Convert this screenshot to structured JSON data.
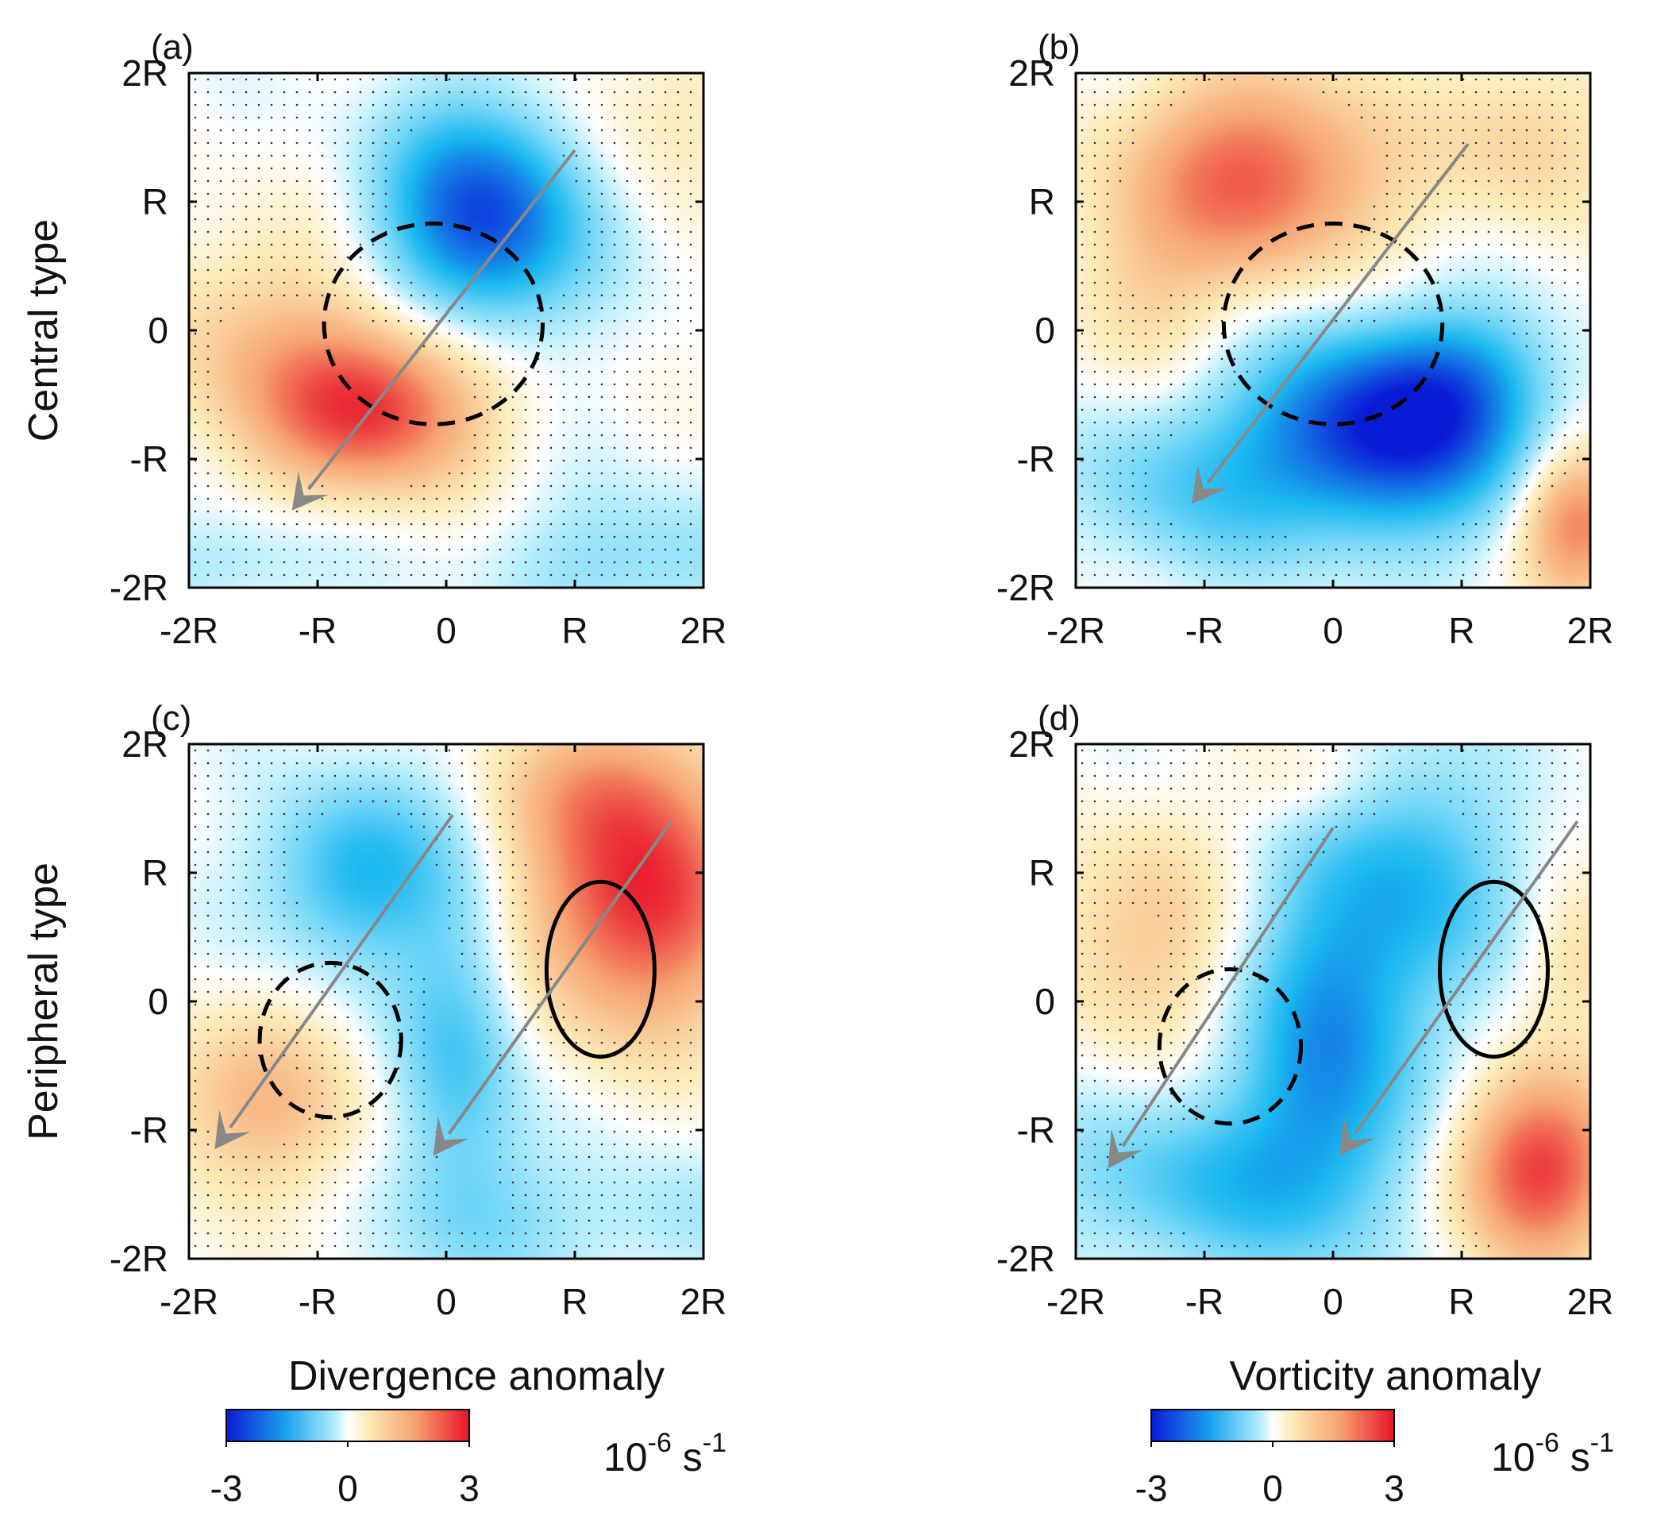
{
  "chart_data": [
    {
      "type": "heatmap",
      "panel_label": "(a)",
      "row_label": "Central type",
      "field": "Divergence anomaly",
      "xticks": [
        "-2R",
        "-R",
        "0",
        "R",
        "2R"
      ],
      "yticks": [
        "2R",
        "R",
        "0",
        "-R",
        "-2R"
      ],
      "xlim": [
        -2,
        2
      ],
      "ylim": [
        -2,
        2
      ],
      "clim": [
        -3,
        3
      ],
      "blobs": [
        {
          "x": 0.3,
          "y": 0.9,
          "sx": 0.55,
          "sy": 0.6,
          "amp": -2.6
        },
        {
          "x": -0.6,
          "y": -0.6,
          "sx": 0.6,
          "sy": 0.45,
          "amp": 2.6
        },
        {
          "x": -1.5,
          "y": 0.0,
          "sx": 0.7,
          "sy": 0.6,
          "amp": 0.8
        },
        {
          "x": 1.6,
          "y": 1.7,
          "sx": 0.6,
          "sy": 0.5,
          "amp": 0.5
        },
        {
          "x": 1.5,
          "y": -1.8,
          "sx": 0.8,
          "sy": 0.4,
          "amp": -0.7
        },
        {
          "x": -1.6,
          "y": -1.8,
          "sx": 0.6,
          "sy": 0.3,
          "amp": -0.5
        }
      ],
      "dashed_contour": {
        "cx": -0.1,
        "cy": 0.05,
        "rx": 0.85,
        "ry": 0.78
      },
      "solid_contour": null,
      "arrows": [
        {
          "from": [
            1.0,
            1.4
          ],
          "to": [
            -1.2,
            -1.4
          ]
        }
      ]
    },
    {
      "type": "heatmap",
      "panel_label": "(b)",
      "row_label": "",
      "field": "Vorticity anomaly",
      "xticks": [
        "-2R",
        "-R",
        "0",
        "R",
        "2R"
      ],
      "yticks": [
        "2R",
        "R",
        "0",
        "-R",
        "-2R"
      ],
      "xlim": [
        -2,
        2
      ],
      "ylim": [
        -2,
        2
      ],
      "clim": [
        -3,
        3
      ],
      "blobs": [
        {
          "x": -0.6,
          "y": 1.2,
          "sx": 0.7,
          "sy": 0.55,
          "amp": 2.3
        },
        {
          "x": 0.4,
          "y": -0.8,
          "sx": 0.7,
          "sy": 0.55,
          "amp": -2.9
        },
        {
          "x": 1.0,
          "y": -0.4,
          "sx": 0.5,
          "sy": 0.4,
          "amp": -1.0
        },
        {
          "x": -1.1,
          "y": -1.2,
          "sx": 0.6,
          "sy": 0.5,
          "amp": -1.0
        },
        {
          "x": 1.9,
          "y": -1.5,
          "sx": 0.3,
          "sy": 0.4,
          "amp": 2.0
        },
        {
          "x": 1.5,
          "y": 1.5,
          "sx": 0.5,
          "sy": 0.5,
          "amp": 0.8
        },
        {
          "x": -1.5,
          "y": 0.3,
          "sx": 0.4,
          "sy": 0.5,
          "amp": 0.7
        }
      ],
      "dashed_contour": {
        "cx": 0.0,
        "cy": 0.05,
        "rx": 0.85,
        "ry": 0.78
      },
      "solid_contour": null,
      "arrows": [
        {
          "from": [
            1.05,
            1.45
          ],
          "to": [
            -1.1,
            -1.35
          ]
        }
      ]
    },
    {
      "type": "heatmap",
      "panel_label": "(c)",
      "row_label": "Peripheral type",
      "field": "Divergence anomaly",
      "xticks": [
        "-2R",
        "-R",
        "0",
        "R",
        "2R"
      ],
      "yticks": [
        "2R",
        "R",
        "0",
        "-R",
        "-2R"
      ],
      "xlim": [
        -2,
        2
      ],
      "ylim": [
        -2,
        2
      ],
      "clim": [
        -3,
        3
      ],
      "blobs": [
        {
          "x": -0.7,
          "y": 1.0,
          "sx": 0.5,
          "sy": 0.5,
          "amp": -1.5
        },
        {
          "x": 0.1,
          "y": -0.4,
          "sx": 0.35,
          "sy": 0.9,
          "amp": -1.2
        },
        {
          "x": 1.5,
          "y": 0.8,
          "sx": 0.6,
          "sy": 0.7,
          "amp": 2.8
        },
        {
          "x": 1.2,
          "y": 1.7,
          "sx": 0.5,
          "sy": 0.4,
          "amp": 1.0
        },
        {
          "x": -1.5,
          "y": -0.8,
          "sx": 0.55,
          "sy": 0.5,
          "amp": 1.2
        },
        {
          "x": 0.4,
          "y": -1.7,
          "sx": 0.5,
          "sy": 0.4,
          "amp": -0.6
        },
        {
          "x": 1.8,
          "y": -1.7,
          "sx": 0.5,
          "sy": 0.4,
          "amp": -0.5
        }
      ],
      "dashed_contour": {
        "cx": -0.9,
        "cy": -0.3,
        "rx": 0.55,
        "ry": 0.6
      },
      "solid_contour": {
        "cx": 1.2,
        "cy": 0.25,
        "rx": 0.42,
        "ry": 0.68
      },
      "arrows": [
        {
          "from": [
            0.05,
            1.45
          ],
          "to": [
            -1.8,
            -1.15
          ]
        },
        {
          "from": [
            1.75,
            1.4
          ],
          "to": [
            -0.1,
            -1.2
          ]
        }
      ]
    },
    {
      "type": "heatmap",
      "panel_label": "(d)",
      "row_label": "",
      "field": "Vorticity anomaly",
      "xticks": [
        "-2R",
        "-R",
        "0",
        "R",
        "2R"
      ],
      "yticks": [
        "2R",
        "R",
        "0",
        "-R",
        "-2R"
      ],
      "xlim": [
        -2,
        2
      ],
      "ylim": [
        -2,
        2
      ],
      "clim": [
        -3,
        3
      ],
      "blobs": [
        {
          "x": 0.0,
          "y": -0.3,
          "sx": 0.5,
          "sy": 1.0,
          "amp": -1.8
        },
        {
          "x": 0.7,
          "y": 1.0,
          "sx": 0.5,
          "sy": 0.7,
          "amp": -1.2
        },
        {
          "x": -1.0,
          "y": -1.4,
          "sx": 0.8,
          "sy": 0.5,
          "amp": -1.2
        },
        {
          "x": 1.6,
          "y": -1.3,
          "sx": 0.45,
          "sy": 0.5,
          "amp": 2.6
        },
        {
          "x": -1.5,
          "y": 0.5,
          "sx": 0.5,
          "sy": 0.6,
          "amp": 1.0
        },
        {
          "x": -0.2,
          "y": 1.7,
          "sx": 0.4,
          "sy": 0.3,
          "amp": 0.5
        },
        {
          "x": 1.9,
          "y": 0.3,
          "sx": 0.3,
          "sy": 0.4,
          "amp": 0.6
        }
      ],
      "dashed_contour": {
        "cx": -0.8,
        "cy": -0.35,
        "rx": 0.55,
        "ry": 0.6
      },
      "solid_contour": {
        "cx": 1.25,
        "cy": 0.25,
        "rx": 0.42,
        "ry": 0.68
      },
      "arrows": [
        {
          "from": [
            0.0,
            1.35
          ],
          "to": [
            -1.75,
            -1.3
          ]
        },
        {
          "from": [
            1.9,
            1.4
          ],
          "to": [
            0.05,
            -1.2
          ]
        }
      ]
    }
  ],
  "colorbars": [
    {
      "title": "Divergence anomaly",
      "ticks": [
        "-3",
        "0",
        "3"
      ],
      "unit_base": "10",
      "unit_exp1": "-6",
      "unit_mid": " s",
      "unit_exp2": "-1"
    },
    {
      "title": "Vorticity anomaly",
      "ticks": [
        "-3",
        "0",
        "3"
      ],
      "unit_base": "10",
      "unit_exp1": "-6",
      "unit_mid": " s",
      "unit_exp2": "-1"
    }
  ],
  "colors": {
    "neg_max": "#0a1bd6",
    "neg_mid": "#1ab8f0",
    "neutral": "#ffffff",
    "pos_light": "#fcebb8",
    "pos_mid": "#f6a06f",
    "pos_max": "#e8142a",
    "arrow": "#888888",
    "contour": "#000000"
  }
}
